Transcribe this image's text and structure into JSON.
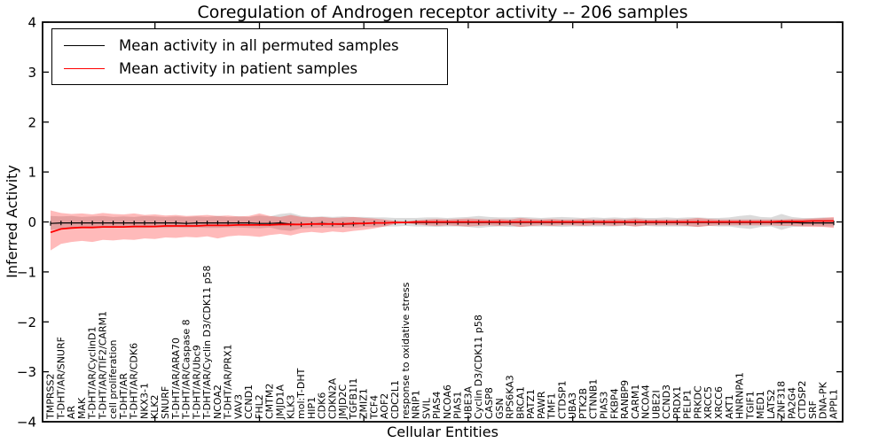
{
  "figure": {
    "title": "Coregulation of Androgen receptor activity -- 206 samples",
    "xlabel": "Cellular Entities",
    "ylabel": "Inferred Activity"
  },
  "legend": {
    "entries": [
      {
        "label": "Mean activity in all permuted samples",
        "color": "#000000"
      },
      {
        "label": "Mean activity in patient samples",
        "color": "#ff0000"
      }
    ]
  },
  "chart_data": {
    "type": "line",
    "title": "Coregulation of Androgen receptor activity -- 206 samples",
    "xlabel": "Cellular Entities",
    "ylabel": "Inferred Activity",
    "ylim": [
      -4,
      4
    ],
    "yticks": [
      -4,
      -3,
      -2,
      -1,
      0,
      1,
      2,
      3,
      4
    ],
    "grid": false,
    "legend_position": "upper left",
    "x_major_tick_every": 10,
    "categories": [
      "TMPRSS2",
      "T-DHT/AR/SNURF",
      "AR",
      "MAK",
      "T-DHT/AR/CyclinD1",
      "T-DHT/AR/TIF2/CARM1",
      "cell proliferation",
      "T-DHT/AR",
      "T-DHT/AR/CDK6",
      "NKX3-1",
      "KLK2",
      "SNURF",
      "T-DHT/AR/ARA70",
      "T-DHT/AR/Caspase 8",
      "T-DHT/AR/Ubc9",
      "T-DHT/AR/Cyclin D3/CDK11 p58",
      "NCOA2",
      "T-DHT/AR/PRX1",
      "VAV3",
      "CCND1",
      "FHL2",
      "CMTM2",
      "JMJD1A",
      "KLK3",
      "mol:T-DHT",
      "HIP1",
      "CDK6",
      "CDKN2A",
      "JMJD2C",
      "TGFB1I1",
      "ZMIZ1",
      "TCF4",
      "AOF2",
      "CDC2L1",
      "response to oxidative stress",
      "NRIP1",
      "SVIL",
      "PIAS4",
      "NCOA6",
      "PIAS1",
      "UBE3A",
      "Cyclin D3/CDK11 p58",
      "CASP8",
      "GSN",
      "RPS6KA3",
      "BRCA1",
      "PATZ1",
      "PAWR",
      "TMF1",
      "CTDSP1",
      "UBA3",
      "PTK2B",
      "CTNNB1",
      "PIAS3",
      "FKBP4",
      "RANBP9",
      "CARM1",
      "NCOA4",
      "UBE2I",
      "CCND3",
      "PRDX1",
      "PELP1",
      "PRKDC",
      "XRCC5",
      "XRCC6",
      "AKT1",
      "HNRNPA1",
      "TGIF1",
      "MED1",
      "LATS2",
      "ZNF318",
      "PA2G4",
      "CTDSP2",
      "SRF",
      "DNA-PK",
      "APPL1"
    ],
    "series": [
      {
        "name": "Mean activity in all permuted samples",
        "color": "#000000",
        "band_color": "#999999",
        "band_opacity": 0.35,
        "values": [
          -0.03,
          -0.02,
          -0.02,
          -0.02,
          -0.02,
          -0.02,
          -0.02,
          -0.02,
          -0.02,
          -0.02,
          -0.02,
          -0.02,
          -0.02,
          -0.03,
          -0.02,
          -0.02,
          -0.02,
          -0.02,
          -0.02,
          -0.02,
          -0.03,
          -0.03,
          -0.02,
          -0.04,
          -0.05,
          -0.04,
          -0.03,
          -0.04,
          -0.05,
          -0.04,
          -0.03,
          -0.02,
          -0.02,
          -0.01,
          -0.01,
          -0.01,
          -0.01,
          -0.01,
          -0.01,
          -0.01,
          -0.01,
          -0.01,
          -0.01,
          -0.01,
          -0.01,
          -0.01,
          -0.01,
          -0.01,
          -0.01,
          -0.01,
          -0.01,
          -0.01,
          -0.01,
          -0.01,
          -0.01,
          -0.01,
          -0.01,
          -0.01,
          -0.01,
          -0.01,
          -0.01,
          -0.01,
          -0.01,
          -0.01,
          -0.01,
          -0.01,
          -0.01,
          -0.01,
          -0.01,
          -0.01,
          -0.01,
          -0.01,
          -0.02,
          -0.02,
          -0.02,
          -0.02
        ],
        "band_upper": [
          0.12,
          0.11,
          0.12,
          0.1,
          0.11,
          0.12,
          0.1,
          0.11,
          0.1,
          0.12,
          0.11,
          0.1,
          0.11,
          0.1,
          0.11,
          0.1,
          0.12,
          0.1,
          0.11,
          0.1,
          0.13,
          0.11,
          0.16,
          0.18,
          0.12,
          0.1,
          0.11,
          0.1,
          0.11,
          0.1,
          0.1,
          0.09,
          0.09,
          0.08,
          0.08,
          0.08,
          0.09,
          0.09,
          0.08,
          0.09,
          0.1,
          0.12,
          0.1,
          0.09,
          0.09,
          0.1,
          0.09,
          0.08,
          0.09,
          0.1,
          0.09,
          0.08,
          0.09,
          0.08,
          0.09,
          0.08,
          0.09,
          0.08,
          0.08,
          0.09,
          0.08,
          0.09,
          0.09,
          0.08,
          0.08,
          0.09,
          0.12,
          0.14,
          0.1,
          0.09,
          0.16,
          0.1,
          0.08,
          0.08,
          0.09,
          0.08
        ],
        "band_lower": [
          -0.16,
          -0.14,
          -0.13,
          -0.12,
          -0.13,
          -0.12,
          -0.12,
          -0.11,
          -0.12,
          -0.12,
          -0.11,
          -0.12,
          -0.11,
          -0.12,
          -0.11,
          -0.12,
          -0.12,
          -0.11,
          -0.11,
          -0.12,
          -0.13,
          -0.11,
          -0.16,
          -0.18,
          -0.13,
          -0.12,
          -0.11,
          -0.12,
          -0.11,
          -0.12,
          -0.1,
          -0.1,
          -0.09,
          -0.09,
          -0.08,
          -0.09,
          -0.09,
          -0.1,
          -0.09,
          -0.09,
          -0.1,
          -0.12,
          -0.1,
          -0.09,
          -0.1,
          -0.1,
          -0.09,
          -0.09,
          -0.09,
          -0.1,
          -0.09,
          -0.09,
          -0.09,
          -0.09,
          -0.09,
          -0.08,
          -0.09,
          -0.08,
          -0.09,
          -0.09,
          -0.09,
          -0.09,
          -0.1,
          -0.08,
          -0.09,
          -0.09,
          -0.12,
          -0.14,
          -0.1,
          -0.09,
          -0.16,
          -0.1,
          -0.09,
          -0.08,
          -0.09,
          -0.09
        ]
      },
      {
        "name": "Mean activity in patient samples",
        "color": "#ff0000",
        "band_color": "#ff0000",
        "band_opacity": 0.27,
        "values": [
          -0.21,
          -0.14,
          -0.12,
          -0.11,
          -0.11,
          -0.1,
          -0.1,
          -0.1,
          -0.09,
          -0.09,
          -0.09,
          -0.08,
          -0.08,
          -0.08,
          -0.08,
          -0.07,
          -0.07,
          -0.07,
          -0.06,
          -0.06,
          -0.06,
          -0.06,
          -0.05,
          -0.05,
          -0.05,
          -0.04,
          -0.04,
          -0.04,
          -0.04,
          -0.03,
          -0.03,
          -0.02,
          -0.02,
          -0.01,
          -0.01,
          0.0,
          0.0,
          0.0,
          0.0,
          0.0,
          0.0,
          0.0,
          0.0,
          0.0,
          0.0,
          0.0,
          0.0,
          0.0,
          0.0,
          0.0,
          0.0,
          0.0,
          0.0,
          0.0,
          0.0,
          0.0,
          0.0,
          0.0,
          0.0,
          0.0,
          0.0,
          0.0,
          0.0,
          0.0,
          0.0,
          0.0,
          0.0,
          0.0,
          0.0,
          0.0,
          0.01,
          0.01,
          0.01,
          0.02,
          0.02,
          0.02
        ],
        "band_upper": [
          0.23,
          0.18,
          0.16,
          0.17,
          0.15,
          0.18,
          0.16,
          0.15,
          0.17,
          0.14,
          0.15,
          0.13,
          0.14,
          0.12,
          0.13,
          0.14,
          0.12,
          0.13,
          0.11,
          0.12,
          0.17,
          0.12,
          0.1,
          0.14,
          0.1,
          0.09,
          0.1,
          0.08,
          0.09,
          0.1,
          0.08,
          0.07,
          0.05,
          0.02,
          0.01,
          0.03,
          0.05,
          0.06,
          0.05,
          0.06,
          0.07,
          0.06,
          0.05,
          0.06,
          0.05,
          0.08,
          0.06,
          0.05,
          0.06,
          0.05,
          0.05,
          0.06,
          0.05,
          0.05,
          0.06,
          0.05,
          0.07,
          0.05,
          0.05,
          0.05,
          0.05,
          0.06,
          0.08,
          0.06,
          0.05,
          0.05,
          0.05,
          0.05,
          0.05,
          0.05,
          0.05,
          0.06,
          0.06,
          0.07,
          0.08,
          0.1
        ],
        "band_lower": [
          -0.57,
          -0.44,
          -0.4,
          -0.38,
          -0.4,
          -0.36,
          -0.37,
          -0.35,
          -0.36,
          -0.33,
          -0.34,
          -0.31,
          -0.32,
          -0.3,
          -0.31,
          -0.29,
          -0.33,
          -0.29,
          -0.27,
          -0.28,
          -0.3,
          -0.26,
          -0.24,
          -0.27,
          -0.22,
          -0.2,
          -0.22,
          -0.19,
          -0.21,
          -0.18,
          -0.16,
          -0.13,
          -0.09,
          -0.04,
          -0.02,
          -0.05,
          -0.07,
          -0.08,
          -0.07,
          -0.08,
          -0.09,
          -0.08,
          -0.07,
          -0.08,
          -0.07,
          -0.1,
          -0.08,
          -0.07,
          -0.08,
          -0.07,
          -0.07,
          -0.08,
          -0.07,
          -0.07,
          -0.08,
          -0.07,
          -0.09,
          -0.07,
          -0.07,
          -0.07,
          -0.07,
          -0.08,
          -0.1,
          -0.08,
          -0.07,
          -0.07,
          -0.07,
          -0.07,
          -0.07,
          -0.07,
          -0.08,
          -0.08,
          -0.09,
          -0.1,
          -0.1,
          -0.12
        ]
      }
    ]
  }
}
